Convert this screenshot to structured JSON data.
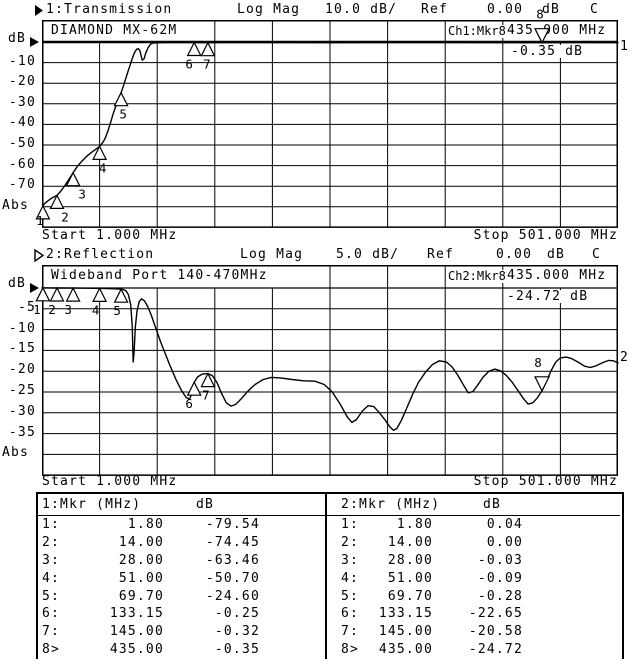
{
  "colors": {
    "background": "#ffffff",
    "foreground": "#000000"
  },
  "ch1": {
    "header": {
      "name": "1:Transmission",
      "scale_label": "Log Mag",
      "scale_value": "10.0 dB/",
      "ref_label": "Ref",
      "ref_value": "0.00",
      "ref_unit": "dB",
      "cal_flag": "C"
    },
    "grid_title": "DIAMOND MX-62M",
    "readout_label": "Ch1:Mkr8",
    "readout_freq": "435.000 MHz",
    "readout_value": "-0.35 dB",
    "axis_unit": "dB",
    "abs_label": "Abs",
    "start_label": "Start 1.000 MHz",
    "stop_label": "Stop 501.000 MHz",
    "trace_number": "1"
  },
  "ch2": {
    "header": {
      "name": "2:Reflection",
      "scale_label": "Log Mag",
      "scale_value": "5.0 dB/",
      "ref_label": "Ref",
      "ref_value": "0.00",
      "ref_unit": "dB",
      "cal_flag": "C"
    },
    "grid_title": "Wideband Port 140-470MHz",
    "readout_label": "Ch2:Mkr8",
    "readout_freq": "435.000 MHz",
    "readout_value": "-24.72 dB",
    "axis_unit": "dB",
    "abs_label": "Abs",
    "start_label": "Start 1.000 MHz",
    "stop_label": "Stop 501.000 MHz",
    "trace_number": "2"
  },
  "tables": [
    {
      "header_left": "1:Mkr (MHz)",
      "header_db": "dB",
      "rows": [
        [
          "1:",
          "1.80",
          "-79.54"
        ],
        [
          "2:",
          "14.00",
          "-74.45"
        ],
        [
          "3:",
          "28.00",
          "-63.46"
        ],
        [
          "4:",
          "51.00",
          "-50.70"
        ],
        [
          "5:",
          "69.70",
          "-24.60"
        ],
        [
          "6:",
          "133.15",
          "-0.25"
        ],
        [
          "7:",
          "145.00",
          "-0.32"
        ],
        [
          "8>",
          "435.00",
          "-0.35"
        ]
      ]
    },
    {
      "header_left": "2:Mkr (MHz)",
      "header_db": "dB",
      "rows": [
        [
          "1:",
          "1.80",
          "0.04"
        ],
        [
          "2:",
          "14.00",
          "0.00"
        ],
        [
          "3:",
          "28.00",
          "-0.03"
        ],
        [
          "4:",
          "51.00",
          "-0.09"
        ],
        [
          "5:",
          "69.70",
          "-0.28"
        ],
        [
          "6:",
          "133.15",
          "-22.65"
        ],
        [
          "7:",
          "145.00",
          "-20.58"
        ],
        [
          "8>",
          "435.00",
          "-24.72"
        ]
      ]
    }
  ],
  "chart_data": [
    {
      "type": "line",
      "channel": "1",
      "title": "1:Transmission",
      "trace_title": "DIAMOND MX-62M",
      "format": "Log Mag",
      "scale_db_per_div": 10,
      "ref_db": 0,
      "x_start_mhz": 1,
      "x_stop_mhz": 501,
      "x_divisions": 10,
      "ylabel": "dB",
      "yticks": [
        "-10",
        "-20",
        "-30",
        "-40",
        "-50",
        "-60",
        "-70"
      ],
      "abs_label": "Abs",
      "trace_number": "1",
      "points": [
        [
          1,
          -85
        ],
        [
          1.8,
          -79.54
        ],
        [
          3,
          -78.6
        ],
        [
          5,
          -77.6
        ],
        [
          8,
          -76.3
        ],
        [
          11,
          -75.3
        ],
        [
          14,
          -74.45
        ],
        [
          17,
          -72.6
        ],
        [
          20,
          -70.4
        ],
        [
          24,
          -67
        ],
        [
          28,
          -63.46
        ],
        [
          32,
          -60.2
        ],
        [
          36,
          -57.6
        ],
        [
          40,
          -55.4
        ],
        [
          44,
          -53.6
        ],
        [
          48,
          -52
        ],
        [
          51,
          -50.7
        ],
        [
          54,
          -48.6
        ],
        [
          56,
          -46.5
        ],
        [
          58,
          -43.5
        ],
        [
          60,
          -40
        ],
        [
          63,
          -34.5
        ],
        [
          66,
          -29.5
        ],
        [
          69.7,
          -24.6
        ],
        [
          72,
          -20.8
        ],
        [
          75,
          -15.5
        ],
        [
          77,
          -12
        ],
        [
          79,
          -8.5
        ],
        [
          81,
          -5.5
        ],
        [
          83,
          -3.6
        ],
        [
          84.5,
          -3.2
        ],
        [
          86,
          -4.2
        ],
        [
          88,
          -8.8
        ],
        [
          89.5,
          -8.2
        ],
        [
          91,
          -5.5
        ],
        [
          93,
          -2.8
        ],
        [
          95,
          -1.2
        ],
        [
          97,
          -0.6
        ],
        [
          100,
          -0.4
        ],
        [
          110,
          -0.3
        ],
        [
          120,
          -0.28
        ],
        [
          133.15,
          -0.25
        ],
        [
          145,
          -0.32
        ],
        [
          160,
          -0.3
        ],
        [
          180,
          -0.28
        ],
        [
          200,
          -0.3
        ],
        [
          250,
          -0.32
        ],
        [
          300,
          -0.3
        ],
        [
          350,
          -0.31
        ],
        [
          400,
          -0.33
        ],
        [
          435,
          -0.35
        ],
        [
          470,
          -0.3
        ],
        [
          501,
          -0.32
        ]
      ],
      "markers": [
        {
          "n": "1",
          "f": 1.8,
          "db": -79.54,
          "style": "up",
          "dx": -3,
          "ly": 205
        },
        {
          "n": "2",
          "f": 14,
          "db": -74.45,
          "style": "up",
          "dx": 8
        },
        {
          "n": "3",
          "f": 28,
          "db": -63.46,
          "style": "up",
          "dx": 9
        },
        {
          "n": "4",
          "f": 51,
          "db": -50.7,
          "style": "up",
          "dx": 3
        },
        {
          "n": "5",
          "f": 69.7,
          "db": -24.6,
          "style": "up",
          "dx": 2
        },
        {
          "n": "6",
          "f": 133.15,
          "db": -0.25,
          "style": "up",
          "dx": -5
        },
        {
          "n": "7",
          "f": 145,
          "db": -0.32,
          "style": "up",
          "dx": -1
        },
        {
          "n": "8",
          "f": 435,
          "db": -0.35,
          "style": "active",
          "dx": -2
        }
      ]
    },
    {
      "type": "line",
      "channel": "2",
      "title": "2:Reflection",
      "trace_title": "Wideband Port 140-470MHz",
      "format": "Log Mag",
      "scale_db_per_div": 5,
      "ref_db": 0,
      "x_start_mhz": 1,
      "x_stop_mhz": 501,
      "x_divisions": 10,
      "ylabel": "dB",
      "yticks": [
        "-5",
        "-10",
        "-15",
        "-20",
        "-25",
        "-30",
        "-35"
      ],
      "abs_label": "Abs",
      "trace_number": "2",
      "points": [
        [
          1,
          0.04
        ],
        [
          10,
          0.02
        ],
        [
          14,
          0
        ],
        [
          20,
          -0.01
        ],
        [
          28,
          -0.03
        ],
        [
          40,
          -0.06
        ],
        [
          51,
          -0.09
        ],
        [
          58,
          -0.14
        ],
        [
          64,
          -0.2
        ],
        [
          69.7,
          -0.28
        ],
        [
          72,
          -0.4
        ],
        [
          74,
          -0.7
        ],
        [
          76,
          -1.6
        ],
        [
          78,
          -4
        ],
        [
          79.3,
          -9
        ],
        [
          80.2,
          -17.8
        ],
        [
          81,
          -15
        ],
        [
          82,
          -9.5
        ],
        [
          83.5,
          -5.5
        ],
        [
          85.5,
          -3.2
        ],
        [
          87.5,
          -2.6
        ],
        [
          90,
          -3.1
        ],
        [
          93,
          -4.6
        ],
        [
          96,
          -6.6
        ],
        [
          100,
          -9.8
        ],
        [
          104,
          -13
        ],
        [
          108,
          -15.8
        ],
        [
          112,
          -18.6
        ],
        [
          117,
          -21.8
        ],
        [
          122,
          -24.6
        ],
        [
          126,
          -26.3
        ],
        [
          129,
          -26.7
        ],
        [
          131,
          -25.4
        ],
        [
          133.15,
          -22.65
        ],
        [
          136,
          -21.4
        ],
        [
          140,
          -20.7
        ],
        [
          145,
          -20.58
        ],
        [
          149,
          -21.1
        ],
        [
          153,
          -22.8
        ],
        [
          157,
          -25.4
        ],
        [
          161,
          -27.6
        ],
        [
          165,
          -28.4
        ],
        [
          169,
          -28
        ],
        [
          174,
          -26.6
        ],
        [
          180,
          -24.7
        ],
        [
          186,
          -23.2
        ],
        [
          193,
          -22
        ],
        [
          200,
          -21.5
        ],
        [
          208,
          -21.6
        ],
        [
          218,
          -22
        ],
        [
          228,
          -22.3
        ],
        [
          238,
          -22.4
        ],
        [
          246,
          -23.2
        ],
        [
          253,
          -25
        ],
        [
          260,
          -28
        ],
        [
          266,
          -31
        ],
        [
          270,
          -32.3
        ],
        [
          274,
          -31.6
        ],
        [
          279,
          -29.6
        ],
        [
          284,
          -28.3
        ],
        [
          289,
          -28.5
        ],
        [
          294,
          -30
        ],
        [
          299,
          -31.8
        ],
        [
          303,
          -33.4
        ],
        [
          306,
          -34.2
        ],
        [
          309,
          -33.8
        ],
        [
          313,
          -31.8
        ],
        [
          318,
          -28.6
        ],
        [
          323,
          -25.4
        ],
        [
          328,
          -22.6
        ],
        [
          334,
          -20.2
        ],
        [
          340,
          -18.4
        ],
        [
          346,
          -17.5
        ],
        [
          352,
          -17.8
        ],
        [
          357,
          -19
        ],
        [
          362,
          -21
        ],
        [
          367,
          -23.4
        ],
        [
          371,
          -25.2
        ],
        [
          375,
          -24.9
        ],
        [
          379,
          -23.4
        ],
        [
          384,
          -21.4
        ],
        [
          389,
          -20
        ],
        [
          394,
          -19.5
        ],
        [
          399,
          -19.9
        ],
        [
          404,
          -21
        ],
        [
          409,
          -22.6
        ],
        [
          414,
          -24.6
        ],
        [
          419,
          -26.6
        ],
        [
          423,
          -27.9
        ],
        [
          427,
          -27.6
        ],
        [
          431,
          -26.4
        ],
        [
          435,
          -24.72
        ],
        [
          439,
          -22.4
        ],
        [
          443,
          -19.8
        ],
        [
          447,
          -17.8
        ],
        [
          451,
          -16.8
        ],
        [
          456,
          -16.6
        ],
        [
          461,
          -17
        ],
        [
          467,
          -17.9
        ],
        [
          472,
          -18.8
        ],
        [
          477,
          -19.1
        ],
        [
          482,
          -18.7
        ],
        [
          488,
          -17.9
        ],
        [
          493,
          -17.4
        ],
        [
          497,
          -17.5
        ],
        [
          501,
          -18
        ]
      ],
      "markers": [
        {
          "n": "1",
          "f": 1.8,
          "db": 0.04,
          "style": "up",
          "dx": -6
        },
        {
          "n": "2",
          "f": 14,
          "db": 0,
          "style": "up",
          "dx": -5
        },
        {
          "n": "3",
          "f": 28,
          "db": -0.03,
          "style": "up",
          "dx": -5
        },
        {
          "n": "4",
          "f": 51,
          "db": -0.09,
          "style": "up",
          "dx": -4
        },
        {
          "n": "5",
          "f": 69.7,
          "db": -0.28,
          "style": "up",
          "dx": -4
        },
        {
          "n": "6",
          "f": 133.15,
          "db": -22.65,
          "style": "up",
          "dx": -5
        },
        {
          "n": "7",
          "f": 145,
          "db": -20.58,
          "style": "up",
          "dx": -2
        },
        {
          "n": "8",
          "f": 435,
          "db": -24.72,
          "style": "active",
          "dx": -4
        }
      ]
    }
  ]
}
